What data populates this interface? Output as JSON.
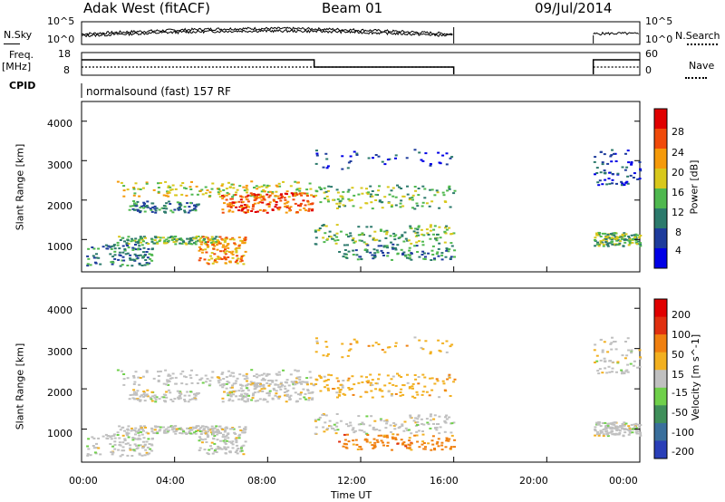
{
  "header": {
    "station": "Adak West (fitACF)",
    "beam": "Beam 01",
    "date": "09/Jul/2014"
  },
  "side_labels": {
    "nsky": "N.Sky",
    "freq": "Freq.",
    "mhz": "[MHz]",
    "cpid": "CPID",
    "nsearch": "N.Search",
    "nave": "Nave"
  },
  "cpid_text": "normalsound (fast) 157 RF",
  "top_axes": {
    "nsky_left_ticks": [
      "10^5",
      "10^0"
    ],
    "nsky_right_ticks": [
      "10^5",
      "10^0"
    ],
    "freq_left_ticks": [
      "18",
      "8"
    ],
    "nave_right_ticks": [
      "60",
      "0"
    ]
  },
  "chart_data": [
    {
      "type": "heatmap",
      "name": "power",
      "ylabel": "Slant Range [km]",
      "yticks": [
        "4000",
        "3000",
        "2000",
        "1000"
      ],
      "colorbar_label": "Power [dB]",
      "colorbar_ticks": [
        "28",
        "24",
        "20",
        "16",
        "12",
        "8",
        "4"
      ],
      "colors": [
        "#0000e6",
        "#1e3c9c",
        "#2c7a6c",
        "#4fb84f",
        "#d8c81c",
        "#f59a0a",
        "#f04a0a",
        "#e00000"
      ],
      "ylim": [
        180,
        4500
      ]
    },
    {
      "type": "heatmap",
      "name": "velocity",
      "ylabel": "Slant Range [km]",
      "yticks": [
        "4000",
        "3000",
        "2000",
        "1000"
      ],
      "colorbar_label": "Velocity [m s^-1]",
      "colorbar_ticks": [
        "200",
        "100",
        "50",
        "15",
        "-15",
        "-50",
        "-100",
        "-200"
      ],
      "colors": [
        "#2a3fb8",
        "#3a6f9c",
        "#3f8f5a",
        "#6fd04a",
        "#c0c0c0",
        "#f2b020",
        "#f08010",
        "#e03010",
        "#e00000"
      ],
      "ylim": [
        180,
        4500
      ]
    }
  ],
  "x_axis": {
    "ticks": [
      "00:00",
      "04:00",
      "08:00",
      "12:00",
      "16:00",
      "20:00",
      "00:00"
    ],
    "label": "Time UT"
  }
}
